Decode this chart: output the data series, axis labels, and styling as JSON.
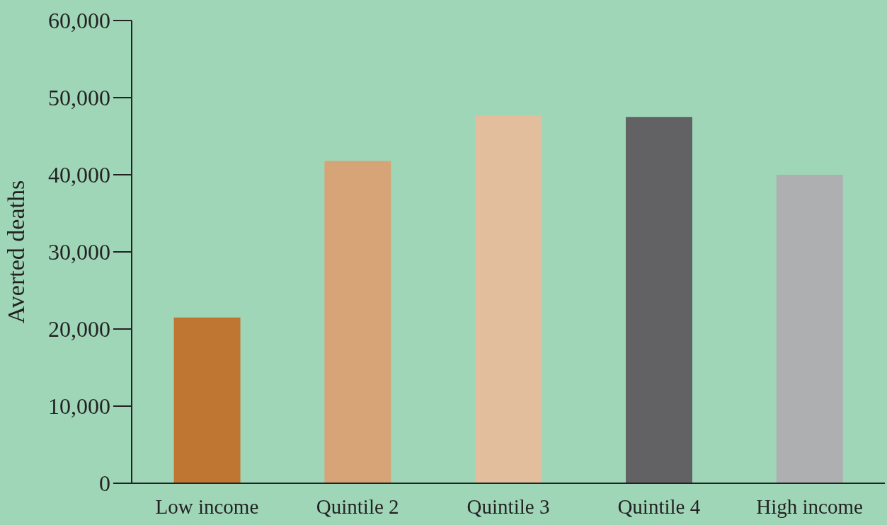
{
  "chart_data": {
    "type": "bar",
    "ylabel": "Averted deaths",
    "categories": [
      "Low income",
      "Quintile 2",
      "Quintile 3",
      "Quintile 4",
      "High income"
    ],
    "values": [
      21500,
      41800,
      47700,
      47500,
      40000
    ],
    "colors": [
      "#bf7632",
      "#d6a477",
      "#e2be9c",
      "#626264",
      "#aeafb1"
    ],
    "ylim": [
      0,
      60000
    ],
    "yticks": [
      {
        "value": 0,
        "label": "0"
      },
      {
        "value": 10000,
        "label": "10,000"
      },
      {
        "value": 20000,
        "label": "20,000"
      },
      {
        "value": 30000,
        "label": "30,000"
      },
      {
        "value": 40000,
        "label": "40,000"
      },
      {
        "value": 50000,
        "label": "50,000"
      },
      {
        "value": 60000,
        "label": "60,000"
      }
    ],
    "grid": false,
    "legend": false
  }
}
